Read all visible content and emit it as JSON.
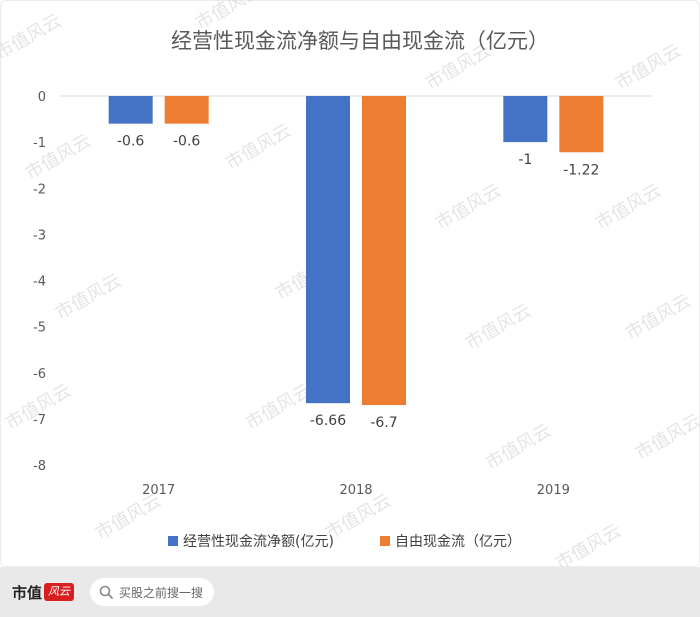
{
  "chart_data": {
    "type": "bar",
    "title": "经营性现金流净额与自由现金流（亿元）",
    "categories": [
      "2017",
      "2018",
      "2019"
    ],
    "series": [
      {
        "name": "经营性现金流净额(亿元)",
        "color": "#4472c4",
        "values": [
          -0.6,
          -6.66,
          -1
        ],
        "labels": [
          "-0.6",
          "-6.66",
          "-1"
        ]
      },
      {
        "name": "自由现金流（亿元）",
        "color": "#ed7d31",
        "values": [
          -0.6,
          -6.7,
          -1.22
        ],
        "labels": [
          "-0.6",
          "-6.7",
          "-1.22"
        ]
      }
    ],
    "yticks": [
      "0",
      "-1",
      "-2",
      "-3",
      "-4",
      "-5",
      "-6",
      "-7",
      "-8"
    ],
    "ylim": [
      -8,
      0
    ],
    "grid": false,
    "legend_position": "bottom"
  },
  "watermark": {
    "text": "市值风云",
    "color": "#d9d9d9"
  },
  "footer": {
    "brand": "市值",
    "brand_stamp": "风云",
    "search_placeholder": "买股之前搜一搜"
  }
}
